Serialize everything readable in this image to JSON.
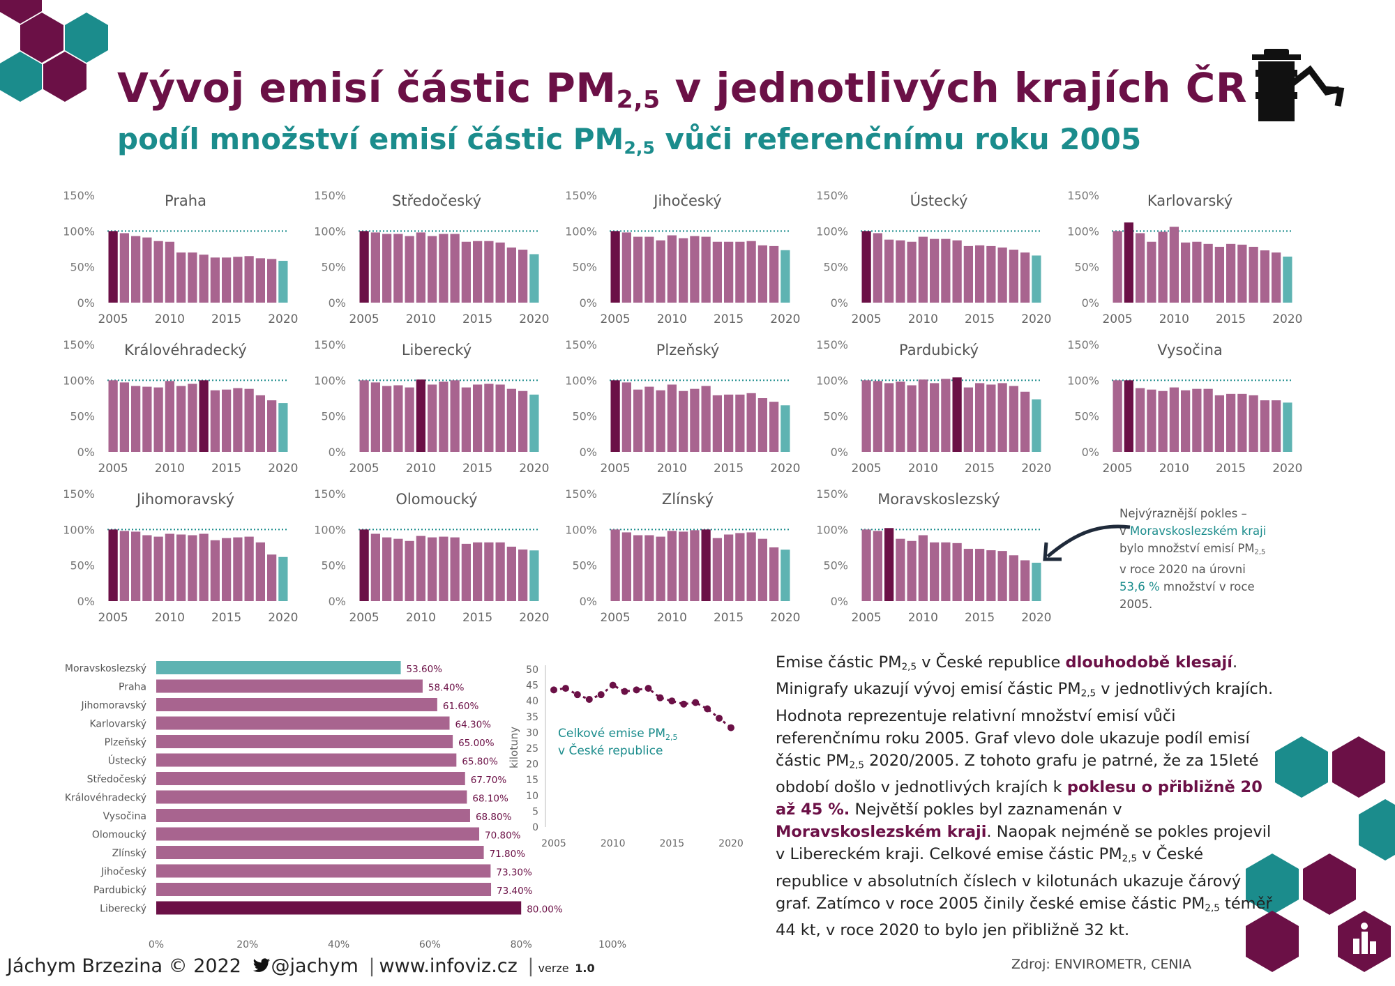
{
  "title_pre": "Vývoj emisí částic PM",
  "title_sub": "2,5",
  "title_post": " v jednotlivých krajích ČR",
  "subtitle_pre": "podíl množství emisí částic PM",
  "subtitle_sub": "2,5",
  "subtitle_post": " vůči referenčnímu roku 2005",
  "colors": {
    "bar": "#a8648f",
    "highlight": "#6b1046",
    "last": "#5eb3b2",
    "teal": "#1b8c8c",
    "dark": "#6b1046"
  },
  "icon": "chimney-decline-icon",
  "small_charts": {
    "y_ticks": [
      "150%",
      "100%",
      "50%",
      "0%"
    ],
    "x_ticks": [
      "2005",
      "2010",
      "2015",
      "2020"
    ],
    "ylim": [
      0,
      150
    ],
    "reference_line": 100
  },
  "chart_data": [
    {
      "type": "bar",
      "title": "Praha",
      "x": [
        2005,
        2006,
        2007,
        2008,
        2009,
        2010,
        2011,
        2012,
        2013,
        2014,
        2015,
        2016,
        2017,
        2018,
        2019,
        2020
      ],
      "values": [
        100,
        97,
        93,
        91,
        86,
        85,
        70,
        70,
        67,
        63,
        63,
        64,
        65,
        62,
        61,
        58.4
      ],
      "highlight": 0
    },
    {
      "type": "bar",
      "title": "Středočeský",
      "x": [
        2005,
        2006,
        2007,
        2008,
        2009,
        2010,
        2011,
        2012,
        2013,
        2014,
        2015,
        2016,
        2017,
        2018,
        2019,
        2020
      ],
      "values": [
        100,
        98,
        96,
        96,
        93,
        98,
        93,
        96,
        96,
        85,
        86,
        86,
        84,
        77,
        74,
        67.7
      ],
      "highlight": 0
    },
    {
      "type": "bar",
      "title": "Jihočeský",
      "x": [
        2005,
        2006,
        2007,
        2008,
        2009,
        2010,
        2011,
        2012,
        2013,
        2014,
        2015,
        2016,
        2017,
        2018,
        2019,
        2020
      ],
      "values": [
        100,
        98,
        92,
        92,
        87,
        94,
        90,
        93,
        92,
        85,
        85,
        85,
        86,
        80,
        79,
        73.3
      ],
      "highlight": 0
    },
    {
      "type": "bar",
      "title": "Ústecký",
      "x": [
        2005,
        2006,
        2007,
        2008,
        2009,
        2010,
        2011,
        2012,
        2013,
        2014,
        2015,
        2016,
        2017,
        2018,
        2019,
        2020
      ],
      "values": [
        100,
        97,
        88,
        87,
        85,
        92,
        89,
        89,
        87,
        79,
        80,
        79,
        77,
        74,
        70,
        65.8
      ],
      "highlight": 0
    },
    {
      "type": "bar",
      "title": "Karlovarský",
      "x": [
        2005,
        2006,
        2007,
        2008,
        2009,
        2010,
        2011,
        2012,
        2013,
        2014,
        2015,
        2016,
        2017,
        2018,
        2019,
        2020
      ],
      "values": [
        100,
        112,
        97,
        85,
        99,
        106,
        84,
        85,
        82,
        78,
        82,
        81,
        78,
        73,
        70,
        64.3
      ],
      "highlight": 1
    },
    {
      "type": "bar",
      "title": "Královéhradecký",
      "x": [
        2005,
        2006,
        2007,
        2008,
        2009,
        2010,
        2011,
        2012,
        2013,
        2014,
        2015,
        2016,
        2017,
        2018,
        2019,
        2020
      ],
      "values": [
        100,
        97,
        92,
        91,
        90,
        99,
        92,
        95,
        100,
        86,
        87,
        89,
        88,
        79,
        72,
        68.1
      ],
      "highlight": 8
    },
    {
      "type": "bar",
      "title": "Liberecký",
      "x": [
        2005,
        2006,
        2007,
        2008,
        2009,
        2010,
        2011,
        2012,
        2013,
        2014,
        2015,
        2016,
        2017,
        2018,
        2019,
        2020
      ],
      "values": [
        100,
        97,
        92,
        93,
        90,
        101,
        94,
        98,
        100,
        90,
        94,
        95,
        94,
        88,
        85,
        80
      ],
      "highlight": 5
    },
    {
      "type": "bar",
      "title": "Plzeňský",
      "x": [
        2005,
        2006,
        2007,
        2008,
        2009,
        2010,
        2011,
        2012,
        2013,
        2014,
        2015,
        2016,
        2017,
        2018,
        2019,
        2020
      ],
      "values": [
        100,
        97,
        87,
        91,
        86,
        94,
        85,
        88,
        92,
        79,
        80,
        80,
        82,
        75,
        70,
        65
      ],
      "highlight": 0
    },
    {
      "type": "bar",
      "title": "Pardubický",
      "x": [
        2005,
        2006,
        2007,
        2008,
        2009,
        2010,
        2011,
        2012,
        2013,
        2014,
        2015,
        2016,
        2017,
        2018,
        2019,
        2020
      ],
      "values": [
        100,
        99,
        96,
        98,
        93,
        101,
        96,
        102,
        104,
        90,
        96,
        94,
        96,
        92,
        84,
        73.4
      ],
      "highlight": 8
    },
    {
      "type": "bar",
      "title": "Vysočina",
      "x": [
        2005,
        2006,
        2007,
        2008,
        2009,
        2010,
        2011,
        2012,
        2013,
        2014,
        2015,
        2016,
        2017,
        2018,
        2019,
        2020
      ],
      "values": [
        100,
        100,
        89,
        87,
        85,
        90,
        86,
        88,
        88,
        79,
        81,
        81,
        79,
        72,
        72,
        68.8
      ],
      "highlight": 1
    },
    {
      "type": "bar",
      "title": "Jihomoravský",
      "x": [
        2005,
        2006,
        2007,
        2008,
        2009,
        2010,
        2011,
        2012,
        2013,
        2014,
        2015,
        2016,
        2017,
        2018,
        2019,
        2020
      ],
      "values": [
        100,
        98,
        97,
        92,
        90,
        94,
        93,
        92,
        94,
        85,
        88,
        89,
        90,
        82,
        65,
        61.6
      ],
      "highlight": 0
    },
    {
      "type": "bar",
      "title": "Olomoucký",
      "x": [
        2005,
        2006,
        2007,
        2008,
        2009,
        2010,
        2011,
        2012,
        2013,
        2014,
        2015,
        2016,
        2017,
        2018,
        2019,
        2020
      ],
      "values": [
        100,
        94,
        89,
        87,
        84,
        91,
        89,
        90,
        89,
        80,
        82,
        82,
        82,
        76,
        72,
        70.8
      ],
      "highlight": 0
    },
    {
      "type": "bar",
      "title": "Zlínský",
      "x": [
        2005,
        2006,
        2007,
        2008,
        2009,
        2010,
        2011,
        2012,
        2013,
        2014,
        2015,
        2016,
        2017,
        2018,
        2019,
        2020
      ],
      "values": [
        100,
        96,
        92,
        92,
        90,
        98,
        97,
        99,
        100,
        88,
        93,
        95,
        96,
        87,
        75,
        71.8
      ],
      "highlight": 8
    },
    {
      "type": "bar",
      "title": "Moravskoslezský",
      "x": [
        2005,
        2006,
        2007,
        2008,
        2009,
        2010,
        2011,
        2012,
        2013,
        2014,
        2015,
        2016,
        2017,
        2018,
        2019,
        2020
      ],
      "values": [
        100,
        98,
        102,
        87,
        84,
        92,
        82,
        82,
        81,
        73,
        73,
        71,
        70,
        64,
        57,
        53.6
      ],
      "highlight": 2
    },
    {
      "type": "bar",
      "orientation": "horizontal",
      "categories": [
        "Moravskoslezský",
        "Praha",
        "Jihomoravský",
        "Karlovarský",
        "Plzeňský",
        "Ústecký",
        "Středočeský",
        "Královéhradecký",
        "Vysočina",
        "Olomoucký",
        "Zlínský",
        "Jihočeský",
        "Pardubický",
        "Liberecký"
      ],
      "values": [
        53.6,
        58.4,
        61.6,
        64.3,
        65.0,
        65.8,
        67.7,
        68.1,
        68.8,
        70.8,
        71.8,
        73.3,
        73.4,
        80.0
      ],
      "value_labels": [
        "53.60%",
        "58.40%",
        "61.60%",
        "64.30%",
        "65.00%",
        "65.80%",
        "67.70%",
        "68.10%",
        "68.80%",
        "70.80%",
        "71.80%",
        "73.30%",
        "73.40%",
        "80.00%"
      ],
      "x_ticks": [
        "0%",
        "20%",
        "40%",
        "60%",
        "80%",
        "100%"
      ],
      "xlim": [
        0,
        100
      ]
    },
    {
      "type": "line",
      "x": [
        2005,
        2006,
        2007,
        2008,
        2009,
        2010,
        2011,
        2012,
        2013,
        2014,
        2015,
        2016,
        2017,
        2018,
        2019,
        2020
      ],
      "values": [
        43.5,
        44,
        42,
        40.5,
        42,
        45,
        43,
        43.5,
        44,
        41,
        40,
        39,
        39.5,
        37.5,
        34.5,
        31.5
      ],
      "ylabel": "kilotuny",
      "ylim": [
        0,
        50
      ],
      "y_ticks": [
        "50",
        "45",
        "40",
        "35",
        "30",
        "25",
        "20",
        "15",
        "10",
        "5",
        "0"
      ],
      "x_ticks": [
        "2005",
        "2010",
        "2015",
        "2020"
      ],
      "legend_l1": "Celkové emise PM",
      "legend_sub": "2,5",
      "legend_l2": "v České republice"
    }
  ],
  "annotation": {
    "l1": "Nejvýraznější pokles –",
    "l2_pre": "v ",
    "l2_link": "Moravskoslezském kraji",
    "l3_pre": "bylo množství emisí PM",
    "l3_sub": "2,5",
    "l4": "v roce 2020 na úrovni",
    "l5_value": "53,6 %",
    "l5_post": " množství v roce",
    "l6": "2005."
  },
  "summary": {
    "s1": "Emise částic PM",
    "sub": "2,5",
    "s2": " v České republice ",
    "s3": "dlouhodobě klesají",
    "s4": ".",
    "s5": "Minigrafy ukazují vývoj emisí částic PM",
    "s6": " v jednotlivých krajích. Hodnota reprezentuje relativní množství emisí vůči referenčnímu roku 2005. Graf vlevo dole ukazuje podíl emisí částic PM",
    "s7": " 2020/2005. Z tohoto grafu je patrné, že za 15leté období došlo v jednotlivých krajích k ",
    "s8": "poklesu o přibližně 20 až 45 %.",
    "s9": " Největší pokles byl zaznamenán v ",
    "s10": "Moravskoslezském kraji",
    "s11": ". Naopak nejméně se pokles projevil v Libereckém kraji. Celkové emise částic PM",
    "s12": " v České republice v absolutních číslech v kilotunách ukazuje čárový graf. Zatímco v roce 2005 činily české emise částic PM",
    "s13": " téměř 44 kt, v roce 2020 to bylo jen přibližně 32 kt."
  },
  "footer": {
    "author": "Jáchym Brzezina © 2022",
    "handle": "@jachym",
    "site": "www.infoviz.cz",
    "version_label": "verze",
    "version": "1.0"
  },
  "source": "Zdroj: ENVIROMETR, CENIA",
  "logo": "infoviz-chart-logo"
}
